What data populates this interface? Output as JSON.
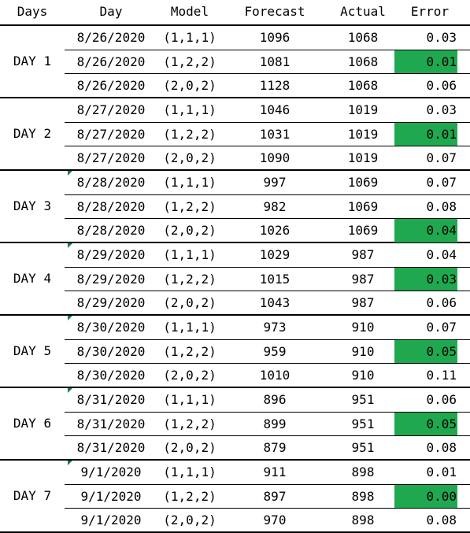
{
  "columns": [
    "Days",
    "Day",
    "Model",
    "Forecast",
    "Actual",
    "Error"
  ],
  "highlight_color": "#1fa84f",
  "groups": [
    {
      "label": "DAY 1",
      "rows": [
        {
          "date": "8/26/2020",
          "model": "(1,1,1)",
          "forecast": "1096",
          "actual": "1068",
          "error": "0.03",
          "best": false
        },
        {
          "date": "8/26/2020",
          "model": "(1,2,2)",
          "forecast": "1081",
          "actual": "1068",
          "error": "0.01",
          "best": true
        },
        {
          "date": "8/26/2020",
          "model": "(2,0,2)",
          "forecast": "1128",
          "actual": "1068",
          "error": "0.06",
          "best": false
        }
      ]
    },
    {
      "label": "DAY 2",
      "rows": [
        {
          "date": "8/27/2020",
          "model": "(1,1,1)",
          "forecast": "1046",
          "actual": "1019",
          "error": "0.03",
          "best": false
        },
        {
          "date": "8/27/2020",
          "model": "(1,2,2)",
          "forecast": "1031",
          "actual": "1019",
          "error": "0.01",
          "best": true
        },
        {
          "date": "8/27/2020",
          "model": "(2,0,2)",
          "forecast": "1090",
          "actual": "1019",
          "error": "0.07",
          "best": false
        }
      ]
    },
    {
      "label": "DAY 3",
      "marker": true,
      "rows": [
        {
          "date": "8/28/2020",
          "model": "(1,1,1)",
          "forecast": "997",
          "actual": "1069",
          "error": "0.07",
          "best": false
        },
        {
          "date": "8/28/2020",
          "model": "(1,2,2)",
          "forecast": "982",
          "actual": "1069",
          "error": "0.08",
          "best": false
        },
        {
          "date": "8/28/2020",
          "model": "(2,0,2)",
          "forecast": "1026",
          "actual": "1069",
          "error": "0.04",
          "best": true
        }
      ]
    },
    {
      "label": "DAY 4",
      "marker": true,
      "rows": [
        {
          "date": "8/29/2020",
          "model": "(1,1,1)",
          "forecast": "1029",
          "actual": "987",
          "error": "0.04",
          "best": false
        },
        {
          "date": "8/29/2020",
          "model": "(1,2,2)",
          "forecast": "1015",
          "actual": "987",
          "error": "0.03",
          "best": true
        },
        {
          "date": "8/29/2020",
          "model": "(2,0,2)",
          "forecast": "1043",
          "actual": "987",
          "error": "0.06",
          "best": false
        }
      ]
    },
    {
      "label": "DAY 5",
      "marker": true,
      "rows": [
        {
          "date": "8/30/2020",
          "model": "(1,1,1)",
          "forecast": "973",
          "actual": "910",
          "error": "0.07",
          "best": false
        },
        {
          "date": "8/30/2020",
          "model": "(1,2,2)",
          "forecast": "959",
          "actual": "910",
          "error": "0.05",
          "best": true
        },
        {
          "date": "8/30/2020",
          "model": "(2,0,2)",
          "forecast": "1010",
          "actual": "910",
          "error": "0.11",
          "best": false
        }
      ]
    },
    {
      "label": "DAY 6",
      "marker": true,
      "rows": [
        {
          "date": "8/31/2020",
          "model": "(1,1,1)",
          "forecast": "896",
          "actual": "951",
          "error": "0.06",
          "best": false
        },
        {
          "date": "8/31/2020",
          "model": "(1,2,2)",
          "forecast": "899",
          "actual": "951",
          "error": "0.05",
          "best": true
        },
        {
          "date": "8/31/2020",
          "model": "(2,0,2)",
          "forecast": "879",
          "actual": "951",
          "error": "0.08",
          "best": false
        }
      ]
    },
    {
      "label": "DAY 7",
      "marker": true,
      "rows": [
        {
          "date": "9/1/2020",
          "model": "(1,1,1)",
          "forecast": "911",
          "actual": "898",
          "error": "0.01",
          "best": false
        },
        {
          "date": "9/1/2020",
          "model": "(1,2,2)",
          "forecast": "897",
          "actual": "898",
          "error": "0.00",
          "best": true
        },
        {
          "date": "9/1/2020",
          "model": "(2,0,2)",
          "forecast": "970",
          "actual": "898",
          "error": "0.08",
          "best": false
        }
      ]
    }
  ]
}
